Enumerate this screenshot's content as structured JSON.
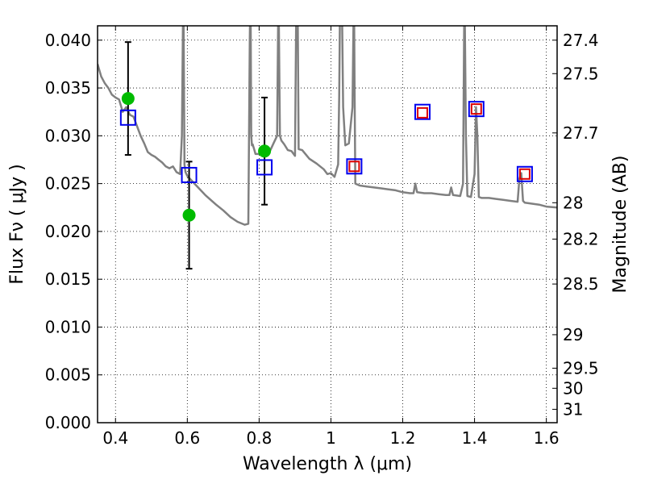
{
  "chart_data": {
    "type": "scatter",
    "xlabel": "Wavelength  λ (μm)",
    "ylabel": "Flux  Fν  ( μJy )",
    "y2label": "Magnitude (AB)",
    "xlim": [
      0.35,
      1.63
    ],
    "ylim": [
      0.0,
      0.0415
    ],
    "grid": true,
    "x_ticks": [
      0.4,
      0.6,
      0.8,
      1.0,
      1.2,
      1.4,
      1.6
    ],
    "x_tick_labels": [
      "0.4",
      "0.6",
      "0.8",
      "1",
      "1.2",
      "1.4",
      "1.6"
    ],
    "y_ticks": [
      0.0,
      0.005,
      0.01,
      0.015,
      0.02,
      0.025,
      0.03,
      0.035,
      0.04
    ],
    "y_tick_labels": [
      "0.000",
      "0.005",
      "0.010",
      "0.015",
      "0.020",
      "0.025",
      "0.030",
      "0.035",
      "0.040"
    ],
    "mag_ticks": [
      {
        "label": "27.4",
        "flux": 0.04
      },
      {
        "label": "27.5",
        "flux": 0.0365
      },
      {
        "label": "27.7",
        "flux": 0.0303
      },
      {
        "label": "28",
        "flux": 0.023
      },
      {
        "label": "28.2",
        "flux": 0.0192
      },
      {
        "label": "28.5",
        "flux": 0.0145
      },
      {
        "label": "29",
        "flux": 0.0092
      },
      {
        "label": "29.5",
        "flux": 0.0057
      },
      {
        "label": "30",
        "flux": 0.0036
      },
      {
        "label": "31",
        "flux": 0.0014
      }
    ],
    "series": [
      {
        "type": "line",
        "color": "#808080",
        "x": [
          0.35,
          0.36,
          0.37,
          0.38,
          0.39,
          0.4,
          0.41,
          0.42,
          0.43,
          0.44,
          0.45,
          0.46,
          0.47,
          0.48,
          0.49,
          0.5,
          0.51,
          0.52,
          0.53,
          0.54,
          0.55,
          0.56,
          0.57,
          0.58,
          0.585,
          0.589,
          0.592,
          0.595,
          0.6,
          0.62,
          0.65,
          0.68,
          0.7,
          0.72,
          0.74,
          0.76,
          0.77,
          0.774,
          0.776,
          0.778,
          0.78,
          0.782,
          0.786,
          0.79,
          0.8,
          0.81,
          0.82,
          0.83,
          0.84,
          0.85,
          0.854,
          0.858,
          0.862,
          0.87,
          0.88,
          0.89,
          0.9,
          0.904,
          0.907,
          0.91,
          0.92,
          0.94,
          0.96,
          0.98,
          0.99,
          1.0,
          1.01,
          1.02,
          1.023,
          1.026,
          1.03,
          1.034,
          1.04,
          1.05,
          1.06,
          1.064,
          1.066,
          1.068,
          1.08,
          1.1,
          1.12,
          1.14,
          1.16,
          1.18,
          1.2,
          1.22,
          1.23,
          1.235,
          1.24,
          1.26,
          1.28,
          1.3,
          1.32,
          1.33,
          1.335,
          1.34,
          1.36,
          1.368,
          1.372,
          1.376,
          1.38,
          1.39,
          1.4,
          1.404,
          1.408,
          1.412,
          1.42,
          1.44,
          1.46,
          1.48,
          1.5,
          1.52,
          1.525,
          1.53,
          1.535,
          1.54,
          1.56,
          1.58,
          1.6,
          1.63
        ],
        "y": [
          0.0375,
          0.0362,
          0.0355,
          0.035,
          0.0343,
          0.034,
          0.0338,
          0.0325,
          0.033,
          0.0322,
          0.032,
          0.031,
          0.03,
          0.0292,
          0.0283,
          0.028,
          0.0278,
          0.0275,
          0.0272,
          0.0268,
          0.0266,
          0.0268,
          0.0262,
          0.026,
          0.03,
          0.046,
          0.027,
          0.0262,
          0.0258,
          0.025,
          0.0238,
          0.0228,
          0.0222,
          0.0215,
          0.021,
          0.0207,
          0.0208,
          0.04,
          0.046,
          0.03,
          0.029,
          0.0291,
          0.0286,
          0.0281,
          0.0281,
          0.028,
          0.0282,
          0.0284,
          0.0292,
          0.03,
          0.046,
          0.03,
          0.0295,
          0.0291,
          0.0285,
          0.0284,
          0.0279,
          0.046,
          0.046,
          0.0286,
          0.0285,
          0.0276,
          0.0271,
          0.0265,
          0.026,
          0.0261,
          0.0257,
          0.027,
          0.034,
          0.046,
          0.046,
          0.033,
          0.029,
          0.0292,
          0.033,
          0.046,
          0.035,
          0.025,
          0.0248,
          0.0247,
          0.0246,
          0.0245,
          0.0244,
          0.0243,
          0.0241,
          0.024,
          0.024,
          0.025,
          0.0241,
          0.024,
          0.024,
          0.0239,
          0.0238,
          0.0238,
          0.0246,
          0.0238,
          0.0237,
          0.025,
          0.046,
          0.03,
          0.0237,
          0.0236,
          0.026,
          0.033,
          0.03,
          0.0236,
          0.0235,
          0.0235,
          0.0234,
          0.0233,
          0.0232,
          0.0231,
          0.0255,
          0.0261,
          0.0232,
          0.023,
          0.0229,
          0.0228,
          0.0226,
          0.0225
        ]
      },
      {
        "type": "points",
        "marker": "circle",
        "color": "#00bb00",
        "x": [
          0.435,
          0.605,
          0.815
        ],
        "y": [
          0.0339,
          0.0217,
          0.0284
        ],
        "yerr": [
          0.0059,
          0.0056,
          0.0056
        ]
      },
      {
        "type": "points",
        "marker": "square",
        "color": "#0000ee",
        "x": [
          0.435,
          0.605,
          0.815,
          1.065,
          1.255,
          1.405,
          1.54
        ],
        "y": [
          0.0319,
          0.0259,
          0.0267,
          0.0268,
          0.0325,
          0.0328,
          0.026
        ]
      },
      {
        "type": "points",
        "marker": "square",
        "color": "#dd0000",
        "x": [
          1.065,
          1.255,
          1.405,
          1.54
        ],
        "y": [
          0.0268,
          0.0324,
          0.0328,
          0.026
        ]
      }
    ]
  }
}
